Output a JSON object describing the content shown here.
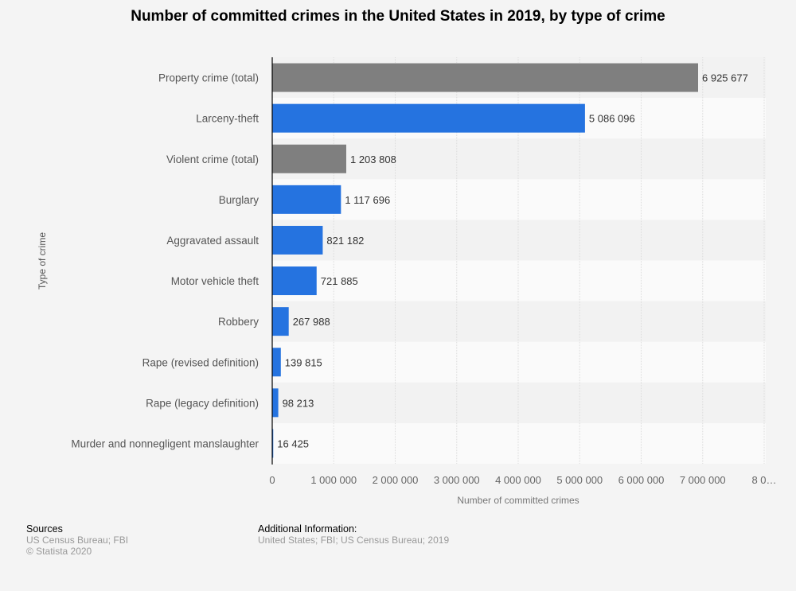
{
  "chart_data": {
    "type": "bar",
    "orientation": "horizontal",
    "title": "Number of committed crimes in the United States in 2019, by type of crime",
    "xlabel": "Number of committed crimes",
    "ylabel": "Type of crime",
    "xlim": [
      0,
      8000000
    ],
    "grid": true,
    "categories": [
      "Property crime (total)",
      "Larceny-theft",
      "Violent crime (total)",
      "Burglary",
      "Aggravated assault",
      "Motor vehicle theft",
      "Robbery",
      "Rape (revised definition)",
      "Rape (legacy definition)",
      "Murder and nonnegligent manslaughter"
    ],
    "values": [
      6925677,
      5086096,
      1203808,
      1117696,
      821182,
      721885,
      267988,
      139815,
      98213,
      16425
    ],
    "value_labels": [
      "6 925 677",
      "5 086 096",
      "1 203 808",
      "1 117 696",
      "821 182",
      "721 885",
      "267 988",
      "139 815",
      "98 213",
      "16 425"
    ],
    "bar_colors": [
      "#7f7f7f",
      "#2573e0",
      "#7f7f7f",
      "#2573e0",
      "#2573e0",
      "#2573e0",
      "#2573e0",
      "#2573e0",
      "#2573e0",
      "#2573e0"
    ],
    "x_ticks": [
      0,
      1000000,
      2000000,
      3000000,
      4000000,
      5000000,
      6000000,
      7000000,
      8000000
    ],
    "x_tick_labels": [
      "0",
      "1 000 000",
      "2 000 000",
      "3 000 000",
      "4 000 000",
      "5 000 000",
      "6 000 000",
      "7 000 000",
      "8 0…"
    ]
  },
  "footer": {
    "sources_heading": "Sources",
    "sources_text": "US Census Bureau; FBI",
    "copyright": "© Statista 2020",
    "additional_heading": "Additional Information:",
    "additional_text": "United States; FBI; US Census Bureau; 2019"
  }
}
